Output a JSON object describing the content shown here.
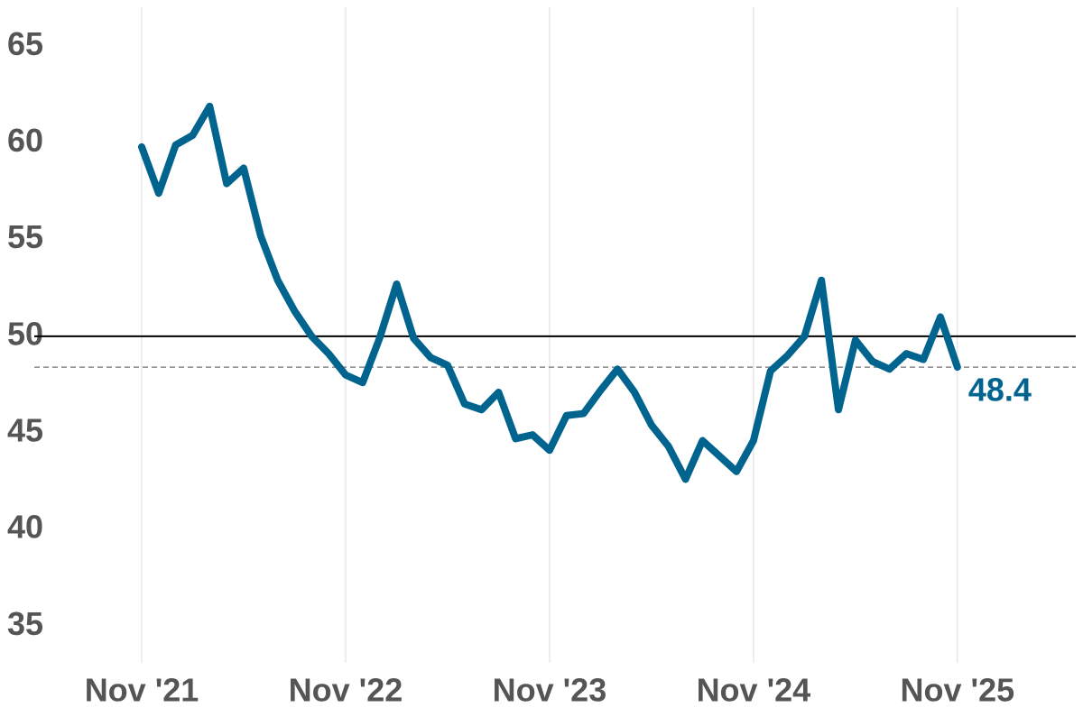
{
  "chart_data": {
    "type": "line",
    "categories": [
      "Nov '21",
      null,
      null,
      null,
      null,
      null,
      null,
      null,
      null,
      null,
      null,
      null,
      "Nov '22",
      null,
      null,
      null,
      null,
      null,
      null,
      null,
      null,
      null,
      null,
      null,
      "Nov '23",
      null,
      null,
      null,
      null,
      null,
      null,
      null,
      null,
      null,
      null,
      null,
      "Nov '24",
      null,
      null,
      null,
      null,
      null,
      null,
      null,
      null,
      null,
      null,
      null,
      "Nov '25"
    ],
    "series": [
      {
        "color": "#00648f",
        "values": [
          59.8,
          57.4,
          59.9,
          60.4,
          61.9,
          57.9,
          58.7,
          55.2,
          52.9,
          51.3,
          50.0,
          49.1,
          48.0,
          47.6,
          49.9,
          52.7,
          49.9,
          48.9,
          48.5,
          46.5,
          46.2,
          47.1,
          44.7,
          44.9,
          44.1,
          45.9,
          46.0,
          47.2,
          48.3,
          47.1,
          45.4,
          44.3,
          42.6,
          44.6,
          43.8,
          43.0,
          44.6,
          48.2,
          49.0,
          50.0,
          52.9,
          46.2,
          49.8,
          48.7,
          48.3,
          49.1,
          48.8,
          51.0,
          48.4
        ]
      }
    ],
    "reference_line": 50,
    "ylim": [
      33.1,
      67.4
    ],
    "yticks": [
      35,
      40,
      45,
      50,
      55,
      60,
      65
    ],
    "grid": true
  }
}
